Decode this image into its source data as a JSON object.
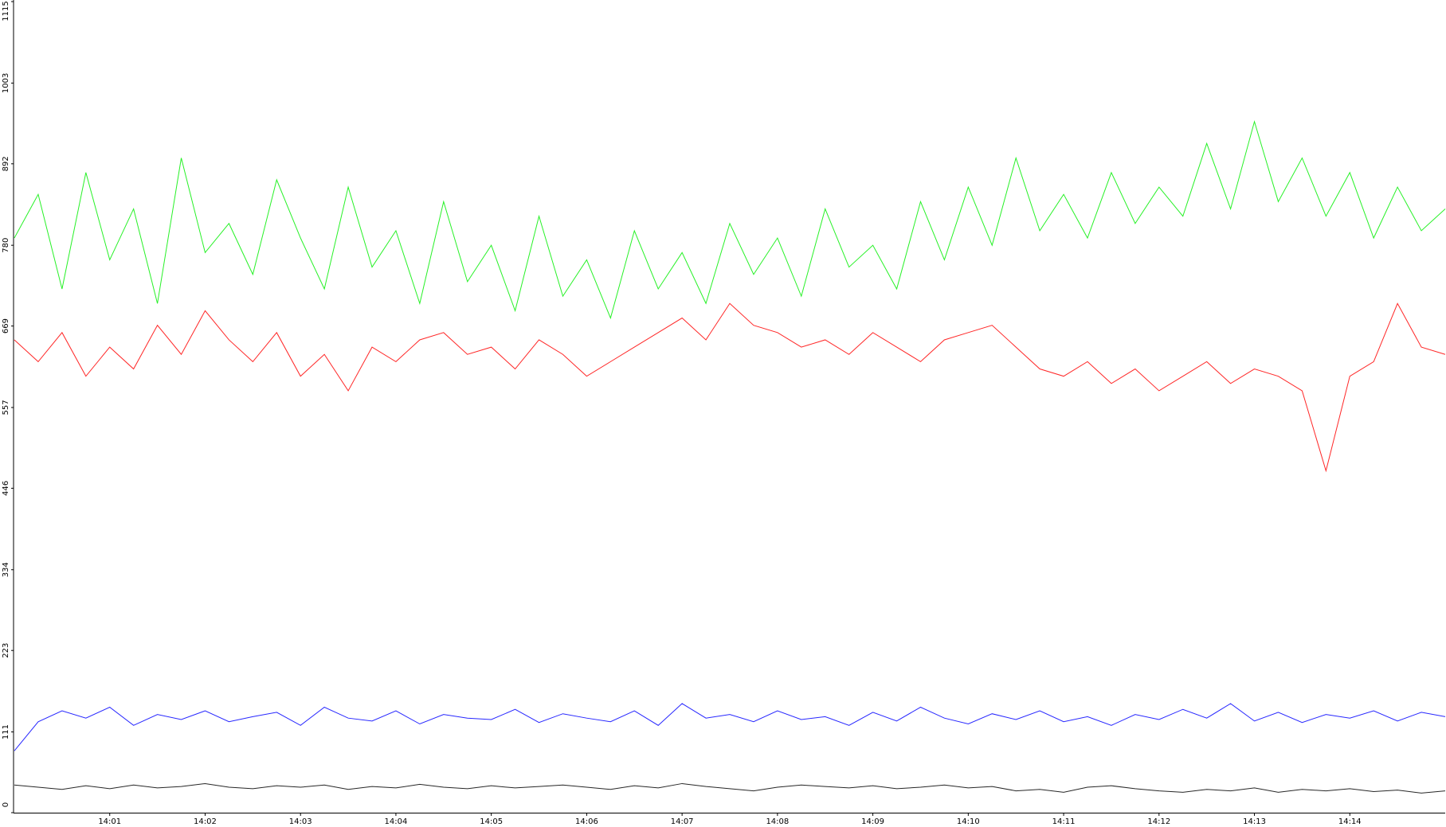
{
  "chart_data": {
    "type": "line",
    "x": [
      0,
      15,
      30,
      45,
      60,
      75,
      90,
      105,
      120,
      135,
      150,
      165,
      180,
      195,
      210,
      225,
      240,
      255,
      270,
      285,
      300,
      315,
      330,
      345,
      360,
      375,
      390,
      405,
      420,
      435,
      450,
      465,
      480,
      495,
      510,
      525,
      540,
      555,
      570,
      585,
      600,
      615,
      630,
      645,
      660,
      675,
      690,
      705,
      720,
      735,
      750,
      765,
      780,
      795,
      810,
      825,
      840,
      855,
      870,
      885,
      900
    ],
    "xlim": [
      0,
      900
    ],
    "xticks": [
      {
        "value": 60,
        "label": "14:01"
      },
      {
        "value": 120,
        "label": "14:02"
      },
      {
        "value": 180,
        "label": "14:03"
      },
      {
        "value": 240,
        "label": "14:04"
      },
      {
        "value": 300,
        "label": "14:05"
      },
      {
        "value": 360,
        "label": "14:06"
      },
      {
        "value": 420,
        "label": "14:07"
      },
      {
        "value": 480,
        "label": "14:08"
      },
      {
        "value": 540,
        "label": "14:09"
      },
      {
        "value": 600,
        "label": "14:10"
      },
      {
        "value": 660,
        "label": "14:11"
      },
      {
        "value": 720,
        "label": "14:12"
      },
      {
        "value": 780,
        "label": "14:13"
      },
      {
        "value": 840,
        "label": "14:14"
      }
    ],
    "ylim": [
      0,
      1115
    ],
    "yticks": [
      0,
      111,
      223,
      334,
      446,
      557,
      669,
      780,
      892,
      1003,
      1115
    ],
    "grid": false,
    "series": [
      {
        "color": "#0000ff",
        "values": [
          85,
          125,
          140,
          130,
          145,
          120,
          135,
          128,
          140,
          125,
          132,
          138,
          120,
          145,
          130,
          126,
          140,
          122,
          135,
          130,
          128,
          142,
          124,
          136,
          130,
          125,
          140,
          120,
          150,
          130,
          135,
          125,
          140,
          128,
          132,
          120,
          138,
          126,
          145,
          130,
          122,
          136,
          128,
          140,
          125,
          132,
          120,
          135,
          128,
          142,
          130,
          150,
          126,
          138,
          124,
          135,
          130,
          140,
          126,
          138,
          132
        ]
      },
      {
        "color": "#000000",
        "values": [
          38,
          35,
          32,
          37,
          33,
          38,
          34,
          36,
          40,
          35,
          33,
          37,
          35,
          38,
          32,
          36,
          34,
          39,
          35,
          33,
          37,
          34,
          36,
          38,
          35,
          32,
          37,
          34,
          40,
          36,
          33,
          30,
          35,
          38,
          36,
          34,
          37,
          33,
          35,
          38,
          34,
          36,
          30,
          32,
          28,
          35,
          37,
          33,
          30,
          28,
          32,
          30,
          34,
          28,
          32,
          30,
          33,
          29,
          31,
          27,
          30
        ]
      },
      {
        "color": "#ff0000",
        "values": [
          650,
          620,
          660,
          600,
          640,
          610,
          670,
          630,
          690,
          650,
          620,
          660,
          600,
          630,
          580,
          640,
          620,
          650,
          660,
          630,
          640,
          610,
          650,
          630,
          600,
          620,
          640,
          660,
          680,
          650,
          700,
          670,
          660,
          640,
          650,
          630,
          660,
          640,
          620,
          650,
          660,
          670,
          640,
          610,
          600,
          620,
          590,
          610,
          580,
          600,
          620,
          590,
          610,
          600,
          580,
          470,
          600,
          620,
          700,
          640,
          630
        ]
      },
      {
        "color": "#00ee00",
        "values": [
          790,
          850,
          720,
          880,
          760,
          830,
          700,
          900,
          770,
          810,
          740,
          870,
          790,
          720,
          860,
          750,
          800,
          700,
          840,
          730,
          780,
          690,
          820,
          710,
          760,
          680,
          800,
          720,
          770,
          700,
          810,
          740,
          790,
          710,
          830,
          750,
          780,
          720,
          840,
          760,
          860,
          780,
          900,
          800,
          850,
          790,
          880,
          810,
          860,
          820,
          920,
          830,
          950,
          840,
          900,
          820,
          880,
          790,
          860,
          800,
          830
        ]
      }
    ]
  }
}
